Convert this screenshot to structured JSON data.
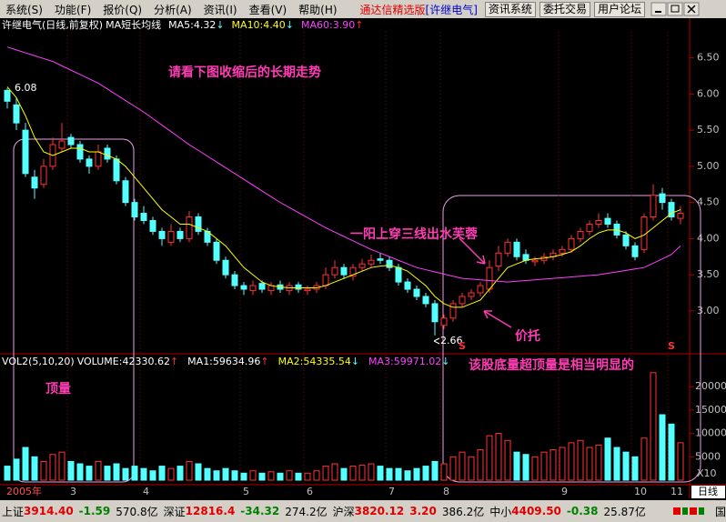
{
  "menu": {
    "items": [
      "系统(S)",
      "功能(F)",
      "报价(Q)",
      "分析(A)",
      "资讯(I)",
      "查看(V)",
      "帮助(H)"
    ],
    "brand": "通达信精选版",
    "stock": "[许继电气]",
    "buttons": [
      "资讯系统",
      "委托交易",
      "用户论坛"
    ]
  },
  "info": {
    "title": "许继电气(日线,前复权)",
    "indicator": "MA短长均线",
    "items": [
      {
        "text": "MA5:4.32",
        "arrow": "↓",
        "color": "#ffffff"
      },
      {
        "text": "MA10:4.40",
        "arrow": "↓",
        "color": "#ffff00"
      },
      {
        "text": "MA60:3.90",
        "arrow": "↑",
        "color": "#ff40ff"
      }
    ]
  },
  "volume_info": {
    "title": "VOL2(5,10,20)",
    "items": [
      {
        "text": "VOLUME:42330.62",
        "arrow": "↑",
        "color": "#ffffff"
      },
      {
        "text": "MA1:59634.96",
        "arrow": "↑",
        "color": "#ffffff"
      },
      {
        "text": "MA2:54335.54",
        "arrow": "↓",
        "color": "#ffff00"
      },
      {
        "text": "MA3:59971.02",
        "arrow": "↓",
        "color": "#ff40ff"
      }
    ]
  },
  "annotations": [
    "请看下图收缩后的长期走势",
    "一阳上穿三线出水芙蓉",
    "价托",
    "该股底量超顶量是相当明显的",
    "顶量"
  ],
  "chart_data": {
    "type": "candlestick",
    "up_color": "#ff3232",
    "down_color": "#54ffff",
    "open": [
      6.05,
      5.85,
      5.5,
      4.85,
      4.75,
      5.0,
      5.25,
      5.4,
      5.3,
      5.1,
      5.0,
      5.25,
      5.1,
      4.8,
      4.5,
      4.35,
      4.25,
      4.1,
      3.95,
      4.1,
      4.0,
      4.3,
      4.1,
      3.95,
      3.7,
      3.5,
      3.35,
      3.28,
      3.38,
      3.28,
      3.36,
      3.28,
      3.36,
      3.28,
      3.3,
      3.35,
      3.5,
      3.6,
      3.48,
      3.6,
      3.65,
      3.72,
      3.7,
      3.6,
      3.4,
      3.3,
      3.2,
      3.1,
      2.8,
      2.9,
      3.1,
      3.2,
      3.25,
      3.3,
      3.62,
      3.8,
      3.95,
      3.78,
      3.68,
      3.7,
      3.75,
      3.8,
      3.85,
      4.0,
      4.1,
      4.2,
      4.28,
      4.2,
      4.05,
      3.9,
      3.85,
      4.3,
      4.62,
      4.5,
      4.28
    ],
    "high": [
      6.08,
      5.95,
      5.6,
      4.95,
      5.1,
      5.4,
      5.6,
      5.45,
      5.35,
      5.15,
      5.3,
      5.3,
      5.15,
      4.85,
      4.55,
      4.45,
      4.3,
      4.15,
      4.2,
      4.15,
      4.38,
      4.35,
      4.15,
      4.0,
      3.75,
      3.55,
      3.4,
      3.42,
      3.42,
      3.4,
      3.42,
      3.4,
      3.4,
      3.35,
      3.4,
      3.6,
      3.7,
      3.65,
      3.65,
      3.72,
      3.78,
      3.8,
      3.75,
      3.65,
      3.45,
      3.35,
      3.25,
      3.15,
      2.95,
      3.15,
      3.25,
      3.3,
      3.4,
      3.7,
      3.9,
      4.0,
      4.0,
      3.85,
      3.75,
      3.8,
      3.85,
      3.9,
      4.05,
      4.15,
      4.25,
      4.35,
      4.35,
      4.25,
      4.1,
      3.95,
      4.35,
      4.75,
      4.7,
      4.55,
      4.45
    ],
    "low": [
      5.8,
      5.5,
      4.85,
      4.55,
      4.7,
      4.95,
      5.2,
      5.25,
      5.05,
      4.9,
      4.95,
      5.05,
      4.75,
      4.45,
      4.25,
      4.2,
      4.05,
      3.9,
      3.9,
      3.95,
      3.95,
      4.05,
      3.9,
      3.65,
      3.45,
      3.3,
      3.22,
      3.22,
      3.25,
      3.22,
      3.25,
      3.22,
      3.25,
      3.22,
      3.25,
      3.3,
      3.45,
      3.45,
      3.42,
      3.55,
      3.6,
      3.65,
      3.55,
      3.35,
      3.25,
      3.15,
      3.05,
      2.66,
      2.75,
      2.85,
      3.05,
      3.15,
      3.2,
      3.25,
      3.55,
      3.75,
      3.7,
      3.65,
      3.62,
      3.65,
      3.7,
      3.75,
      3.8,
      3.95,
      4.05,
      4.15,
      4.15,
      4.0,
      3.85,
      3.7,
      3.8,
      4.25,
      4.4,
      4.25,
      4.2
    ],
    "close": [
      5.9,
      5.6,
      4.9,
      4.7,
      5.0,
      5.3,
      5.35,
      5.3,
      5.1,
      5.0,
      5.2,
      5.1,
      4.8,
      4.5,
      4.3,
      4.25,
      4.1,
      4.0,
      4.1,
      4.0,
      4.3,
      4.1,
      3.95,
      3.7,
      3.5,
      3.35,
      3.3,
      3.35,
      3.3,
      3.35,
      3.3,
      3.35,
      3.3,
      3.3,
      3.35,
      3.5,
      3.6,
      3.5,
      3.6,
      3.65,
      3.7,
      3.7,
      3.6,
      3.4,
      3.3,
      3.2,
      3.1,
      2.85,
      2.9,
      3.1,
      3.2,
      3.25,
      3.35,
      3.6,
      3.8,
      3.95,
      3.75,
      3.7,
      3.7,
      3.75,
      3.8,
      3.85,
      4.0,
      4.1,
      4.2,
      4.25,
      4.2,
      4.05,
      3.9,
      3.75,
      4.3,
      4.6,
      4.5,
      4.3,
      4.35
    ],
    "ma_lines": [
      {
        "color": "#ffff00",
        "values": [
          6.1,
          5.95,
          5.7,
          5.4,
          5.2,
          5.15,
          5.2,
          5.25,
          5.25,
          5.2,
          5.2,
          5.15,
          5.1,
          5.0,
          4.85,
          4.7,
          4.55,
          4.4,
          4.3,
          4.2,
          4.2,
          4.15,
          4.1,
          4.0,
          3.9,
          3.75,
          3.6,
          3.5,
          3.4,
          3.35,
          3.33,
          3.32,
          3.32,
          3.32,
          3.32,
          3.35,
          3.4,
          3.45,
          3.5,
          3.55,
          3.6,
          3.62,
          3.63,
          3.6,
          3.55,
          3.45,
          3.35,
          3.2,
          3.1,
          3.05,
          3.05,
          3.1,
          3.15,
          3.3,
          3.45,
          3.6,
          3.65,
          3.7,
          3.72,
          3.73,
          3.75,
          3.78,
          3.82,
          3.9,
          4.0,
          4.08,
          4.12,
          4.12,
          4.08,
          4.0,
          4.05,
          4.15,
          4.25,
          4.35,
          4.4
        ]
      },
      {
        "color": "#ff40ff",
        "values": [
          6.65,
          6.61,
          6.57,
          6.53,
          6.49,
          6.45,
          6.39,
          6.33,
          6.27,
          6.21,
          6.15,
          6.07,
          5.99,
          5.91,
          5.83,
          5.75,
          5.66,
          5.57,
          5.48,
          5.39,
          5.3,
          5.22,
          5.14,
          5.06,
          4.98,
          4.9,
          4.82,
          4.74,
          4.66,
          4.58,
          4.5,
          4.43,
          4.36,
          4.29,
          4.22,
          4.15,
          4.09,
          4.03,
          3.97,
          3.91,
          3.85,
          3.8,
          3.75,
          3.7,
          3.65,
          3.6,
          3.57,
          3.54,
          3.51,
          3.48,
          3.45,
          3.44,
          3.43,
          3.42,
          3.41,
          3.4,
          3.41,
          3.42,
          3.43,
          3.44,
          3.45,
          3.46,
          3.47,
          3.48,
          3.49,
          3.5,
          3.52,
          3.54,
          3.56,
          3.58,
          3.6,
          3.66,
          3.72,
          3.78,
          3.9
        ]
      }
    ],
    "ylim": [
      2.42,
      6.86
    ],
    "yticks": [
      {
        "value": 3,
        "label": "3.00"
      },
      {
        "value": 3.5,
        "label": "3.50"
      },
      {
        "value": 4,
        "label": "4.00"
      },
      {
        "value": 4.5,
        "label": "4.50"
      },
      {
        "value": 5,
        "label": "5.00"
      },
      {
        "value": 5.5,
        "label": "5.50"
      },
      {
        "value": 6,
        "label": "6.00"
      },
      {
        "value": 6.5,
        "label": "6.50"
      }
    ],
    "high_label": 6.08,
    "low_label": 2.66,
    "signals": [
      {
        "index": 50,
        "label": "S"
      },
      {
        "index": 73,
        "label": "S"
      }
    ],
    "xlabels": [
      {
        "label": "2005年",
        "start_index": 0
      },
      {
        "label": "3",
        "start_index": 7
      },
      {
        "label": "4",
        "start_index": 15
      },
      {
        "label": "5",
        "start_index": 26
      },
      {
        "label": "6",
        "start_index": 33
      },
      {
        "label": "7",
        "start_index": 42
      },
      {
        "label": "8",
        "start_index": 48
      },
      {
        "label": "9",
        "start_index": 61
      },
      {
        "label": "10",
        "start_index": 69
      },
      {
        "label": "11",
        "start_index": 73
      }
    ],
    "volume": {
      "values": [
        3000,
        4500,
        7000,
        5000,
        4000,
        5500,
        6000,
        4000,
        3500,
        3000,
        4000,
        3000,
        3500,
        2500,
        3000,
        2500,
        2000,
        3000,
        2500,
        3000,
        4000,
        3500,
        2500,
        2000,
        2500,
        2000,
        1500,
        2000,
        1500,
        1800,
        1500,
        2000,
        1500,
        1500,
        2000,
        3000,
        3500,
        2500,
        3000,
        3200,
        3500,
        3000,
        2500,
        2500,
        2000,
        2500,
        3000,
        4000,
        3500,
        5000,
        6000,
        5000,
        6500,
        9500,
        10000,
        8500,
        6000,
        5500,
        5000,
        6000,
        6500,
        7000,
        8000,
        8500,
        7000,
        7500,
        9000,
        7000,
        6000,
        5000,
        9000,
        23000,
        14000,
        12000,
        8000
      ],
      "ylim": [
        0,
        26850
      ],
      "yticks": [
        5000,
        10000,
        15000,
        20000
      ],
      "unit": "X10"
    }
  },
  "period_tab": "日线",
  "status": {
    "indices": [
      {
        "name": "上证",
        "value": "3914.40",
        "change": "-1.59",
        "amount": "570.8亿"
      },
      {
        "name": "深证",
        "value": "12816.4",
        "change": "-34.32",
        "amount": "274.2亿"
      },
      {
        "name": "沪深",
        "value": "3820.12",
        "change": "3.20",
        "amount": "386.2亿"
      },
      {
        "name": "中小",
        "value": "4409.50",
        "change": "-0.38",
        "amount": "25.87亿"
      }
    ],
    "right_label": "国"
  }
}
